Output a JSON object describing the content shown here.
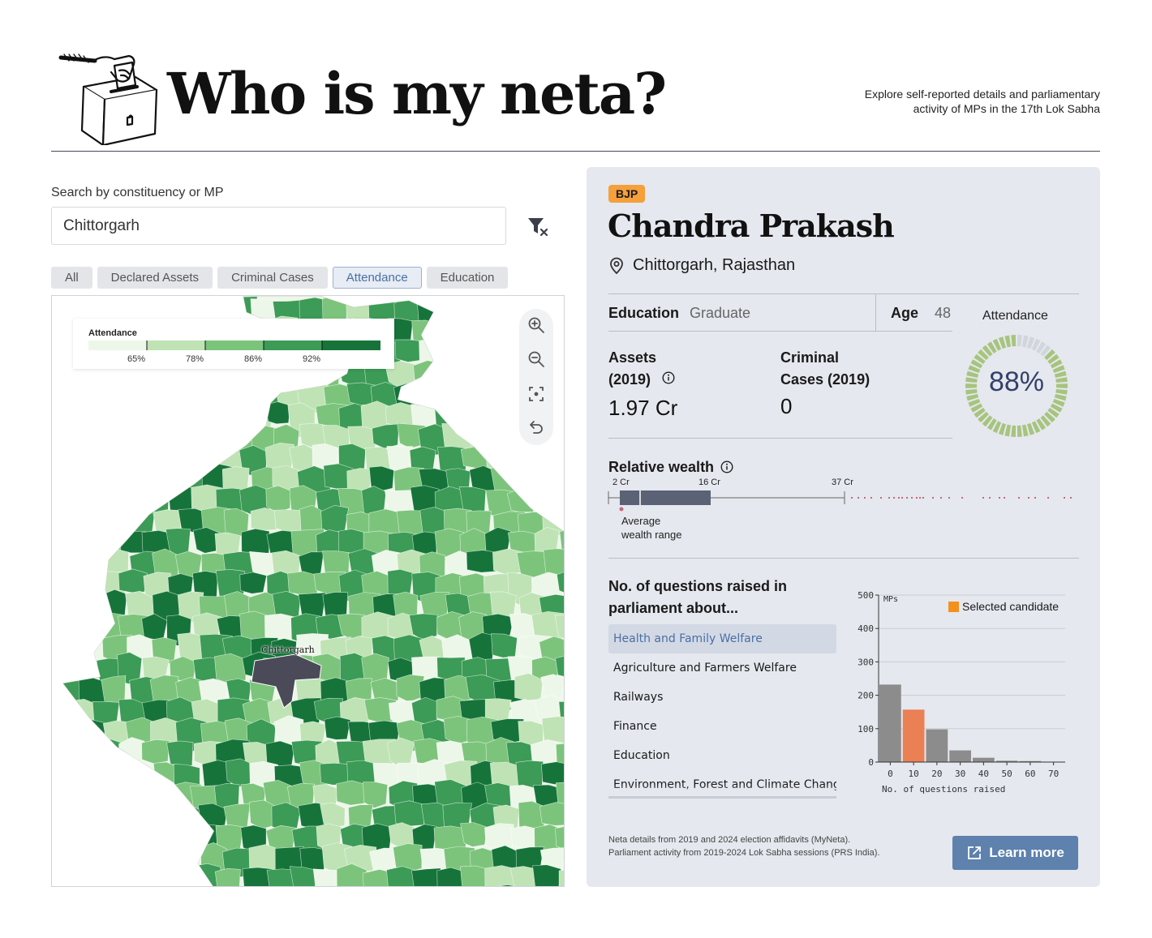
{
  "header": {
    "title": "Who is my neta?",
    "tagline": "Explore self-reported details and parliamentary activity of MPs in the 17th Lok Sabha"
  },
  "search": {
    "label": "Search by constituency or MP",
    "value": "Chittorgarh"
  },
  "tabs": [
    "All",
    "Declared Assets",
    "Criminal Cases",
    "Attendance",
    "Education"
  ],
  "active_tab": "Attendance",
  "map": {
    "legend_title": "Attendance",
    "legend_ticks": [
      "65%",
      "78%",
      "86%",
      "92%"
    ],
    "legend_colors": [
      "#edf7e9",
      "#bfe3b5",
      "#7cc47b",
      "#3c9b56",
      "#16743b"
    ],
    "selected_label": "Chittorgarh",
    "selected_color": "#4a4a58",
    "controls": [
      "zoom-in-icon",
      "zoom-out-icon",
      "recenter-icon",
      "undo-icon"
    ]
  },
  "mp": {
    "party": "BJP",
    "party_color": "#f5a03a",
    "name": "Chandra Prakash",
    "location": "Chittorgarh, Rajasthan",
    "education_label": "Education",
    "education": "Graduate",
    "age_label": "Age",
    "age": "48",
    "attendance_label": "Attendance",
    "attendance": "88%",
    "attendance_fraction": 0.88,
    "assets_label": "Assets (2019)",
    "assets": "1.97 Cr",
    "criminal_label": "Criminal Cases (2019)",
    "criminal": "0"
  },
  "relative_wealth": {
    "title": "Relative wealth",
    "ticks": [
      "2 Cr",
      "16 Cr",
      "37 Cr"
    ],
    "note_line1": "Average",
    "note_line2": "wealth range"
  },
  "questions": {
    "title": "No. of questions raised in parliament about...",
    "topics": [
      "Health and Family Welfare",
      "Agriculture and Farmers Welfare",
      "Railways",
      "Finance",
      "Education",
      "Environment, Forest and Climate Change"
    ],
    "active_topic": "Health and Family Welfare"
  },
  "chart_data": {
    "type": "bar",
    "title": "",
    "xlabel": "No. of questions raised",
    "ylabel": "MPs",
    "x_ticks": [
      0,
      10,
      20,
      30,
      40,
      50,
      60,
      70
    ],
    "y_ticks": [
      0,
      100,
      200,
      300,
      400,
      500
    ],
    "ylim": [
      0,
      500
    ],
    "xlim": [
      -5,
      75
    ],
    "bins": [
      0,
      10,
      20,
      30,
      40,
      50,
      60
    ],
    "bin_width": 10,
    "values": [
      232,
      157,
      98,
      35,
      13,
      4,
      3
    ],
    "highlight_bin": 10,
    "legend": "Selected candidate",
    "bar_color": "#8c8c8c",
    "highlight_color": "#ea8054"
  },
  "footer": {
    "note": "Neta details from 2019 and 2024 election affidavits (MyNeta). Parliament activity from 2019-2024 Lok Sabha sessions (PRS India).",
    "button": "Learn more",
    "button_color": "#5e81ad"
  }
}
